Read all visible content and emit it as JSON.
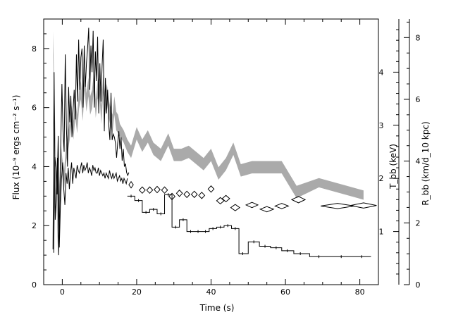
{
  "chart_data": {
    "type": "line",
    "xlabel": "Time (s)",
    "ylabel_left": "Flux (10⁻⁹ ergs cm⁻² s⁻¹)",
    "ylabel_right_inner": "T_bb (keV)",
    "ylabel_right_outer": "R_bb (km/d_10 kpc)",
    "xlim": [
      -5,
      85
    ],
    "ylim_left": [
      0,
      9
    ],
    "ylim_right_inner": [
      0,
      5
    ],
    "ylim_right_outer": [
      0,
      8.6
    ],
    "x_ticks": [
      0,
      20,
      40,
      60,
      80
    ],
    "y_left_ticks": [
      0,
      2,
      4,
      6,
      8
    ],
    "y_right_inner_ticks": [
      1,
      2,
      3,
      4
    ],
    "y_right_outer_ticks": [
      0,
      2,
      4,
      6,
      8
    ],
    "grid": false,
    "series": [
      {
        "kind": "flux_lightcurve",
        "color": "#000000",
        "x": [
          -2.5,
          -2.2,
          -1.9,
          -1.6,
          -1.3,
          -1.0,
          -0.7,
          -0.4,
          -0.1,
          0.2,
          0.5,
          0.8,
          1.1,
          1.4,
          1.7,
          2.0,
          2.3,
          2.6,
          2.9,
          3.2,
          3.5,
          3.8,
          4.1,
          4.4,
          4.7,
          5.0,
          5.3,
          5.6,
          5.9,
          6.2,
          6.5,
          6.8,
          7.1,
          7.4,
          7.7,
          8.0,
          8.3,
          8.6,
          8.9,
          9.2,
          9.5,
          9.8,
          10.1,
          10.4,
          10.7,
          11.0,
          11.3,
          11.6,
          11.9,
          12.2,
          12.5,
          12.8,
          13.1,
          13.4,
          13.7,
          14.0,
          14.3,
          14.6,
          14.9,
          15.2,
          15.5,
          15.8,
          16.1,
          16.4,
          16.7,
          17.0,
          17.3,
          17.6,
          17.9
        ],
        "y": [
          1.2,
          7.2,
          2.2,
          3.0,
          4.3,
          1.0,
          2.5,
          4.8,
          6.8,
          5.2,
          4.5,
          7.8,
          5.4,
          4.0,
          6.7,
          5.5,
          6.4,
          5.0,
          5.9,
          6.6,
          5.6,
          7.8,
          6.2,
          8.3,
          6.6,
          7.7,
          8.0,
          6.0,
          8.1,
          6.7,
          7.5,
          8.0,
          8.7,
          6.6,
          8.1,
          7.2,
          8.6,
          6.0,
          7.9,
          6.9,
          8.4,
          5.8,
          7.5,
          6.2,
          7.4,
          8.3,
          5.2,
          7.0,
          5.8,
          6.6,
          5.4,
          4.9,
          6.5,
          4.9,
          5.1,
          5.0,
          4.8,
          4.3,
          4.8,
          5.2,
          4.6,
          5.0,
          4.2,
          4.6,
          4.0,
          4.1,
          3.8,
          3.7,
          3.8
        ]
      },
      {
        "kind": "flux_binned",
        "color": "#000000",
        "x": [
          18.5,
          20.5,
          22.5,
          24.5,
          26.5,
          28.5,
          30.5,
          32.5,
          34.5,
          36.5,
          38.5,
          40.5,
          42.5,
          44.5,
          46.5,
          48.5,
          51.5,
          54.5,
          57.5,
          60.5,
          64.0,
          69.0,
          75.0,
          80.5
        ],
        "y": [
          3.0,
          2.85,
          2.45,
          2.55,
          2.4,
          3.05,
          1.95,
          2.2,
          1.8,
          1.8,
          1.8,
          1.9,
          1.95,
          2.0,
          1.9,
          1.05,
          1.45,
          1.3,
          1.25,
          1.15,
          1.05,
          0.95,
          0.95,
          0.95
        ]
      },
      {
        "kind": "temperature_curve",
        "color": "#000000",
        "x": [
          -2.3,
          -2.0,
          -1.7,
          -1.4,
          -1.1,
          -0.8,
          -0.5,
          -0.2,
          0.1,
          0.4,
          0.7,
          1.0,
          1.3,
          1.6,
          1.9,
          2.2,
          2.5,
          2.8,
          3.1,
          3.4,
          3.7,
          4.0,
          4.3,
          4.6,
          4.9,
          5.2,
          5.5,
          5.8,
          6.1,
          6.4,
          6.7,
          7.0,
          7.3,
          7.6,
          7.9,
          8.2,
          8.5,
          8.8,
          9.1,
          9.4,
          9.7,
          10.0,
          10.3,
          10.6,
          10.9,
          11.2,
          11.5,
          11.8,
          12.1,
          12.4,
          12.7,
          13.0,
          13.3,
          13.6,
          13.9,
          14.2,
          14.5,
          14.8,
          15.1,
          15.4,
          15.7,
          16.0,
          16.3,
          16.6,
          16.9,
          17.2,
          17.5
        ],
        "y": [
          0.6,
          2.4,
          2.2,
          1.7,
          2.8,
          0.7,
          1.5,
          2.0,
          2.3,
          1.8,
          1.5,
          2.1,
          1.9,
          2.2,
          1.8,
          2.1,
          2.3,
          1.9,
          2.2,
          2.1,
          2.0,
          2.25,
          2.15,
          2.1,
          2.2,
          2.3,
          2.1,
          2.25,
          2.15,
          2.2,
          2.3,
          2.1,
          2.2,
          2.15,
          2.05,
          2.25,
          2.15,
          2.2,
          2.1,
          2.1,
          2.2,
          2.05,
          2.15,
          2.1,
          2.05,
          2.1,
          2.0,
          2.1,
          2.05,
          2.0,
          2.15,
          2.05,
          2.0,
          2.1,
          2.0,
          2.05,
          2.1,
          1.95,
          2.0,
          2.05,
          1.95,
          2.0,
          1.9,
          2.0,
          1.95,
          1.9,
          2.0
        ]
      },
      {
        "kind": "temperature_errors",
        "color": "#000000",
        "x": [
          18.5,
          21.5,
          23.5,
          25.5,
          27.5,
          29.5,
          31.5,
          33.5,
          35.5,
          37.5,
          40.0,
          42.5,
          44.0,
          46.5,
          51.0,
          55.0,
          59.0,
          63.5,
          74.0,
          81.0
        ],
        "y": [
          1.88,
          1.78,
          1.78,
          1.79,
          1.78,
          1.66,
          1.72,
          1.7,
          1.7,
          1.68,
          1.8,
          1.58,
          1.62,
          1.45,
          1.5,
          1.42,
          1.48,
          1.6,
          1.48,
          1.49
        ],
        "dy": [
          0.06,
          0.06,
          0.06,
          0.06,
          0.06,
          0.06,
          0.06,
          0.06,
          0.06,
          0.06,
          0.06,
          0.06,
          0.06,
          0.06,
          0.05,
          0.05,
          0.05,
          0.06,
          0.05,
          0.05
        ],
        "dx": [
          0.6,
          0.8,
          0.8,
          0.8,
          0.8,
          0.8,
          0.8,
          0.8,
          0.8,
          0.8,
          0.8,
          1.0,
          1.0,
          1.2,
          1.6,
          1.8,
          1.8,
          1.8,
          4.5,
          3.5
        ]
      },
      {
        "kind": "radius_band",
        "color": "#aaaaaa",
        "x": [
          -2.5,
          -1.8,
          -1.2,
          -0.8,
          -0.4,
          0.0,
          0.5,
          1.0,
          1.5,
          2.0,
          2.5,
          3.0,
          3.5,
          4.0,
          4.5,
          5.0,
          5.5,
          6.0,
          6.5,
          7.0,
          7.5,
          8.0,
          8.5,
          9.0,
          9.5,
          10.0,
          10.5,
          11.0,
          11.5,
          12.0,
          12.5,
          13.0,
          13.5,
          14.0,
          14.5,
          15.0,
          15.5,
          16.5,
          17.5,
          18.5,
          20.0,
          21.5,
          23.0,
          24.5,
          26.5,
          28.5,
          30.0,
          32.0,
          34.0,
          36.0,
          38.0,
          40.0,
          42.0,
          44.0,
          46.0,
          48.0,
          51.0,
          55.0,
          59.0,
          63.0,
          69.0,
          75.0,
          81.0
        ],
        "y": [
          7.8,
          4.2,
          1.5,
          3.0,
          4.3,
          3.8,
          3.4,
          4.2,
          4.6,
          5.0,
          5.5,
          5.0,
          5.7,
          5.2,
          6.0,
          6.3,
          5.6,
          6.6,
          5.9,
          6.4,
          5.8,
          6.0,
          6.6,
          5.7,
          6.3,
          6.4,
          5.5,
          6.5,
          5.8,
          6.2,
          5.7,
          5.4,
          5.2,
          5.8,
          5.3,
          5.2,
          5.0,
          4.8,
          4.5,
          4.3,
          4.9,
          4.5,
          4.8,
          4.4,
          4.2,
          4.7,
          4.2,
          4.2,
          4.3,
          4.1,
          3.9,
          4.2,
          3.6,
          3.9,
          4.4,
          3.7,
          3.8,
          3.8,
          3.8,
          3.0,
          3.3,
          3.1,
          2.9
        ],
        "halfwidth": [
          0.4,
          0.3,
          0.3,
          0.3,
          0.3,
          0.3,
          0.3,
          0.3,
          0.3,
          0.3,
          0.3,
          0.3,
          0.3,
          0.3,
          0.3,
          0.3,
          0.3,
          0.3,
          0.3,
          0.3,
          0.3,
          0.3,
          0.3,
          0.3,
          0.3,
          0.3,
          0.3,
          0.3,
          0.3,
          0.3,
          0.3,
          0.3,
          0.3,
          0.3,
          0.3,
          0.3,
          0.2,
          0.2,
          0.2,
          0.2,
          0.2,
          0.2,
          0.2,
          0.2,
          0.2,
          0.2,
          0.2,
          0.2,
          0.2,
          0.2,
          0.2,
          0.2,
          0.2,
          0.2,
          0.2,
          0.2,
          0.2,
          0.2,
          0.2,
          0.2,
          0.15,
          0.15,
          0.15
        ]
      }
    ]
  }
}
